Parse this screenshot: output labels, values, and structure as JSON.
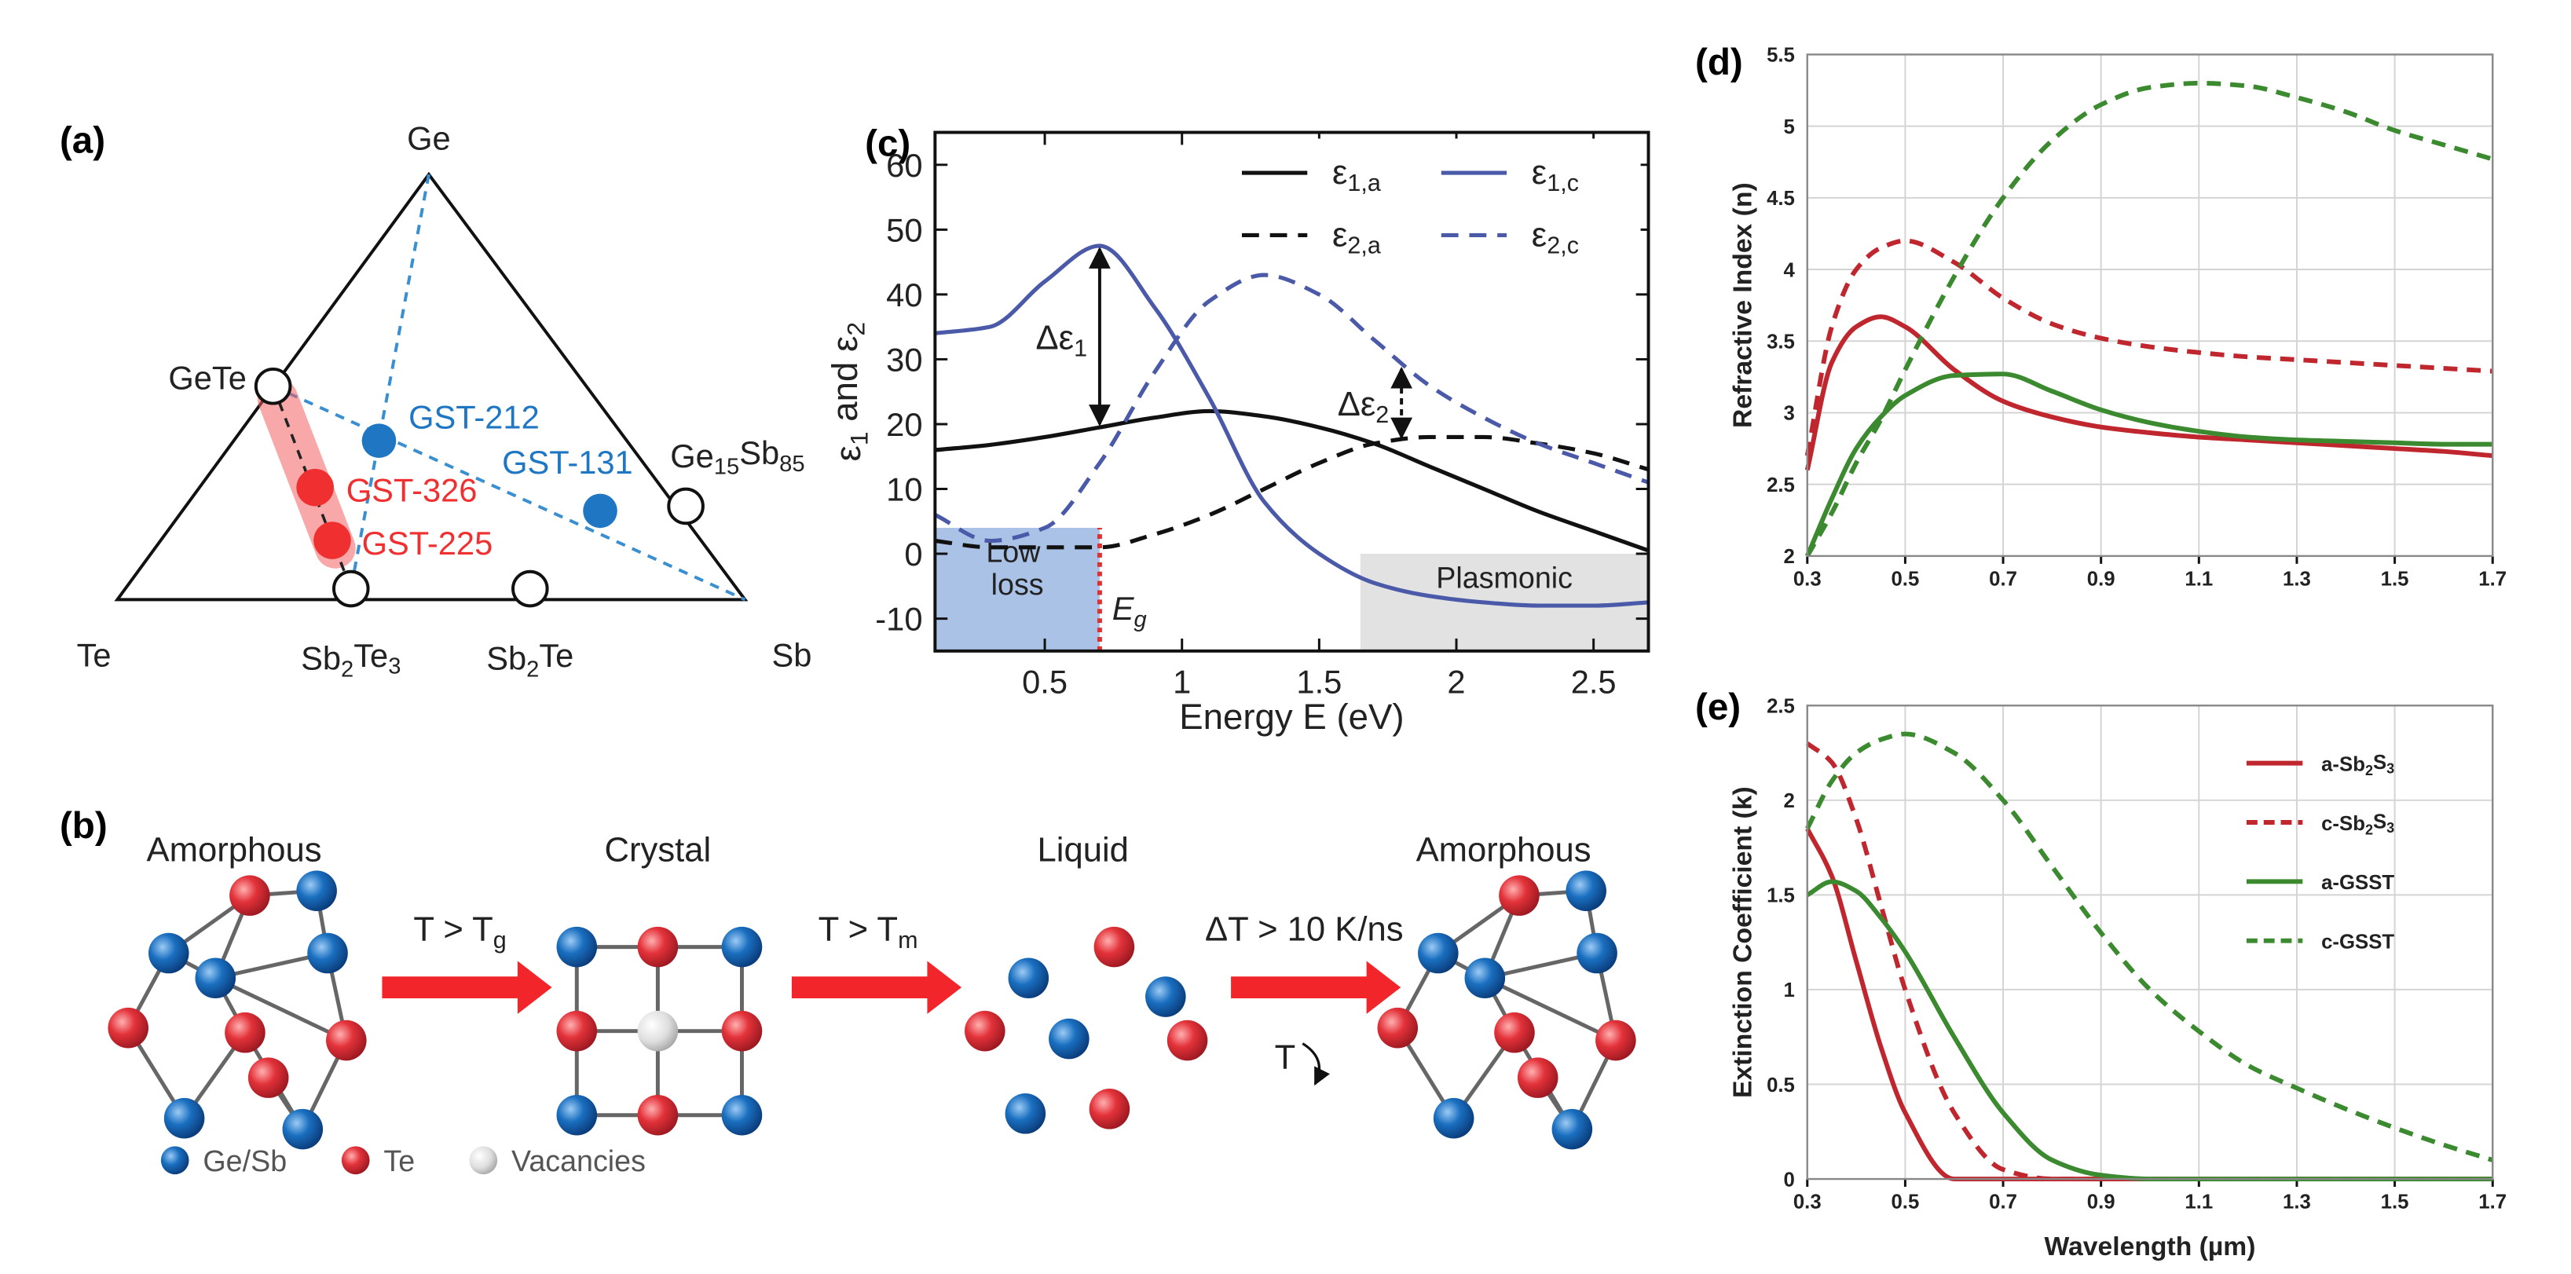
{
  "ternary": {
    "label": "(a)",
    "vertices": [
      "Ge",
      "Te",
      "Sb"
    ],
    "compounds": [
      "GeTe",
      "Ge15Sb85",
      "Sb2Te3",
      "Sb2Te"
    ],
    "points": [
      {
        "label": "GST-212",
        "color": "#1f77c4"
      },
      {
        "label": "GST-131",
        "color": "#1f77c4"
      },
      {
        "label": "GST-326",
        "color": "#f03030"
      },
      {
        "label": "GST-225",
        "color": "#f03030"
      }
    ]
  },
  "phases": {
    "label": "(b)",
    "states": [
      "Amorphous",
      "Crystal",
      "Liquid",
      "Amorphous"
    ],
    "transitions": [
      "T > Tg",
      "T > Tm",
      "ΔT > 10 K/ns"
    ],
    "cooling_label": "T",
    "legend": [
      "Ge/Sb",
      "Te",
      "Vacancies"
    ]
  },
  "chart_data": [
    {
      "type": "line",
      "label": "(c)",
      "xlabel": "Energy E (eV)",
      "ylabel": "ε1 and ε2",
      "x": [
        0.1,
        0.3,
        0.5,
        0.7,
        0.9,
        1.1,
        1.3,
        1.5,
        1.7,
        1.9,
        2.1,
        2.3,
        2.5,
        2.7
      ],
      "xlim": [
        0.1,
        2.7
      ],
      "ylim": [
        -15,
        65
      ],
      "xticks": [
        0.5,
        1,
        1.5,
        2,
        2.5
      ],
      "yticks": [
        -10,
        0,
        10,
        20,
        30,
        40,
        50,
        60
      ],
      "legend": "top",
      "series": [
        {
          "name": "ε1,a",
          "color": "#111111",
          "style": "solid",
          "values": [
            16,
            16.8,
            18,
            19.5,
            21,
            22,
            21.2,
            19.5,
            17,
            13.5,
            10,
            6.5,
            3.5,
            0.5
          ]
        },
        {
          "name": "ε1,c",
          "color": "#4a5aa8",
          "style": "solid",
          "values": [
            34,
            35,
            42,
            47.5,
            38,
            24,
            8,
            0,
            -4.5,
            -6.5,
            -7.5,
            -8,
            -8,
            -7.5
          ]
        },
        {
          "name": "ε2,a",
          "color": "#111111",
          "style": "dashed",
          "values": [
            2,
            1,
            1,
            1,
            3,
            6,
            10,
            14,
            17,
            18,
            18,
            17,
            15.5,
            13
          ]
        },
        {
          "name": "ε2,c",
          "color": "#4a5aa8",
          "style": "dashed",
          "values": [
            6,
            2,
            4,
            14,
            28,
            39,
            43,
            40,
            33,
            26,
            21,
            17,
            14,
            11
          ]
        }
      ],
      "regions": [
        {
          "text": "Low loss",
          "x": [
            0.1,
            0.7
          ],
          "y": [
            -15,
            4
          ],
          "color": "#a9c2e6"
        },
        {
          "text": "Plasmonic",
          "x": [
            1.65,
            2.7
          ],
          "y": [
            -15,
            0
          ],
          "color": "#e2e2e2"
        }
      ],
      "gap_line": {
        "label": "Eg",
        "x": 0.7,
        "y": [
          -15,
          4
        ],
        "color": "#e03030"
      },
      "annotations": [
        {
          "text": "Δε1",
          "x": 0.7,
          "y": [
            19.5,
            47.5
          ],
          "style": "solid"
        },
        {
          "text": "Δε2",
          "x": 1.8,
          "y": [
            17.5,
            29
          ],
          "style": "dashed"
        }
      ]
    },
    {
      "type": "line",
      "label": "(d)",
      "ylabel": "Refractive Index (n)",
      "x": [
        0.3,
        0.35,
        0.4,
        0.45,
        0.5,
        0.6,
        0.7,
        0.8,
        0.9,
        1.0,
        1.1,
        1.2,
        1.3,
        1.4,
        1.5,
        1.6,
        1.7
      ],
      "xlim": [
        0.3,
        1.7
      ],
      "ylim": [
        2,
        5.5
      ],
      "xticks": [
        0.3,
        0.5,
        0.7,
        0.9,
        1.1,
        1.3,
        1.5,
        1.7
      ],
      "yticks": [
        2,
        2.5,
        3,
        3.5,
        4,
        4.5,
        5,
        5.5
      ],
      "grid": true,
      "series": [
        {
          "color": "#c0262d",
          "style": "solid",
          "values": [
            2.6,
            3.35,
            3.6,
            3.67,
            3.6,
            3.3,
            3.08,
            2.97,
            2.9,
            2.86,
            2.83,
            2.81,
            2.79,
            2.77,
            2.75,
            2.73,
            2.7
          ]
        },
        {
          "color": "#c0262d",
          "style": "dashed",
          "values": [
            2.7,
            3.6,
            4.0,
            4.15,
            4.2,
            4.05,
            3.8,
            3.62,
            3.52,
            3.46,
            3.42,
            3.39,
            3.37,
            3.35,
            3.33,
            3.31,
            3.29
          ]
        },
        {
          "color": "#3b8a2f",
          "style": "solid",
          "values": [
            2.0,
            2.4,
            2.75,
            2.97,
            3.12,
            3.26,
            3.27,
            3.15,
            3.02,
            2.93,
            2.87,
            2.83,
            2.81,
            2.8,
            2.79,
            2.78,
            2.78
          ]
        },
        {
          "color": "#3b8a2f",
          "style": "dashed",
          "values": [
            2.0,
            2.3,
            2.65,
            2.95,
            3.3,
            3.95,
            4.5,
            4.9,
            5.15,
            5.27,
            5.3,
            5.28,
            5.2,
            5.1,
            4.97,
            4.87,
            4.77
          ]
        }
      ]
    },
    {
      "type": "line",
      "label": "(e)",
      "xlabel": "Wavelength (µm)",
      "ylabel": "Extinction Coefficient (k)",
      "x": [
        0.3,
        0.35,
        0.4,
        0.45,
        0.5,
        0.6,
        0.7,
        0.8,
        0.9,
        1.0,
        1.1,
        1.2,
        1.3,
        1.4,
        1.5,
        1.6,
        1.7
      ],
      "xlim": [
        0.3,
        1.7
      ],
      "ylim": [
        0,
        2.5
      ],
      "xticks": [
        0.3,
        0.5,
        0.7,
        0.9,
        1.1,
        1.3,
        1.5,
        1.7
      ],
      "yticks": [
        0,
        0.5,
        1,
        1.5,
        2,
        2.5
      ],
      "grid": true,
      "legend": "upper right",
      "series": [
        {
          "name": "a-Sb2S3",
          "color": "#c0262d",
          "style": "solid",
          "values": [
            1.85,
            1.6,
            1.15,
            0.7,
            0.35,
            0,
            0,
            0,
            0,
            0,
            0,
            0,
            0,
            0,
            0,
            0,
            0
          ]
        },
        {
          "name": "c-Sb2S3",
          "color": "#c0262d",
          "style": "dashed",
          "values": [
            2.3,
            2.2,
            1.9,
            1.45,
            1.0,
            0.35,
            0.05,
            0,
            0,
            0,
            0,
            0,
            0,
            0,
            0,
            0,
            0
          ]
        },
        {
          "name": "a-GSST",
          "color": "#3b8a2f",
          "style": "solid",
          "values": [
            1.5,
            1.57,
            1.52,
            1.38,
            1.2,
            0.75,
            0.35,
            0.1,
            0.02,
            0,
            0,
            0,
            0,
            0,
            0,
            0,
            0
          ]
        },
        {
          "name": "c-GSST",
          "color": "#3b8a2f",
          "style": "dashed",
          "values": [
            1.85,
            2.1,
            2.25,
            2.32,
            2.35,
            2.25,
            2.0,
            1.65,
            1.3,
            1.0,
            0.78,
            0.6,
            0.48,
            0.37,
            0.27,
            0.18,
            0.1
          ]
        }
      ]
    }
  ]
}
